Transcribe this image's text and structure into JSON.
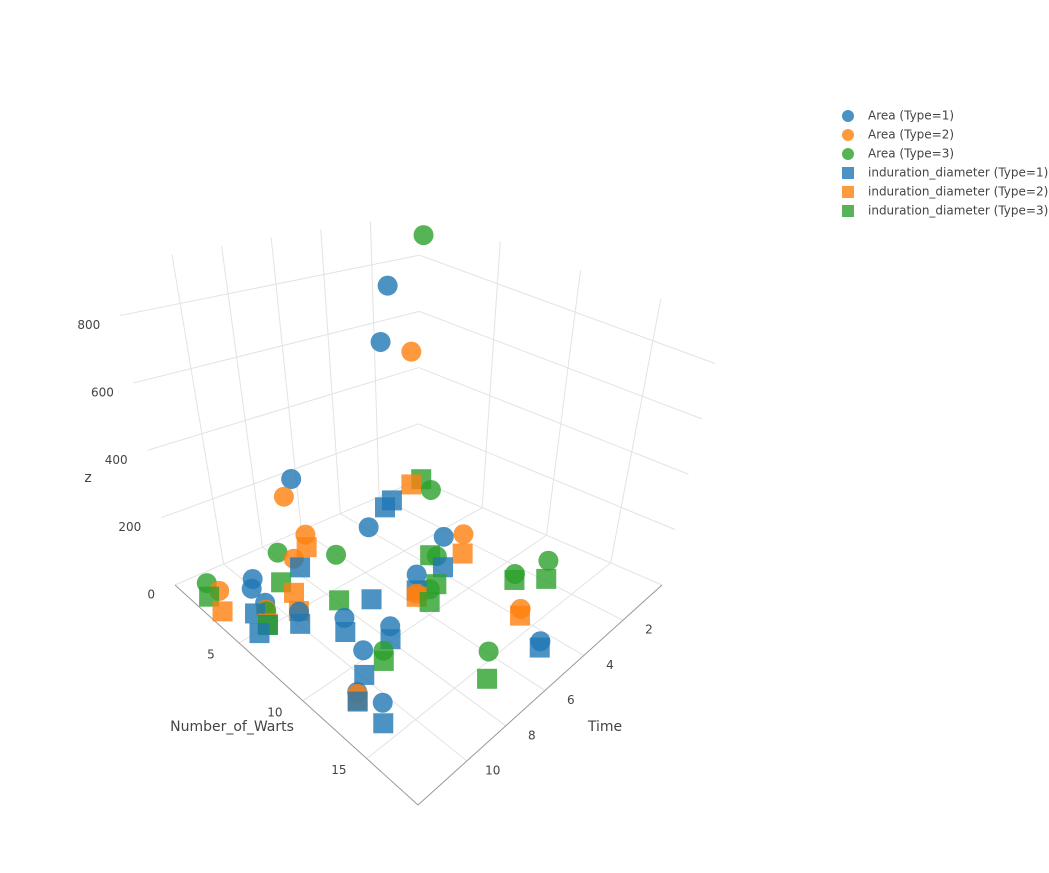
{
  "chart_data": {
    "type": "scatter3d",
    "xlabel": "Number_of_Warts",
    "ylabel": "Time",
    "zlabel": "z",
    "xlim": [
      0,
      19
    ],
    "xticks": [
      5,
      10,
      15
    ],
    "ylim": [
      0,
      12.5
    ],
    "yticks": [
      2,
      4,
      6,
      8,
      10
    ],
    "zlim": [
      0,
      950
    ],
    "zticks": [
      0,
      200,
      400,
      600,
      800
    ],
    "grid": true,
    "legend": "top-right",
    "series": [
      {
        "name": "Area (Type=1)",
        "color": "#1f77b4",
        "symbol": "circle",
        "x": [
          5,
          6,
          3,
          8,
          11,
          12,
          9,
          1,
          2,
          7,
          10,
          4,
          6,
          14,
          17,
          8
        ],
        "y": [
          11,
          10,
          8,
          9,
          10,
          11,
          6,
          2,
          3,
          7,
          8,
          11,
          12,
          11,
          5,
          4
        ],
        "z": [
          70,
          43,
          300,
          50,
          80,
          30,
          100,
          750,
          600,
          230,
          45,
          80,
          200,
          60,
          50,
          120
        ]
      },
      {
        "name": "Area (Type=2)",
        "color": "#ff7f0e",
        "symbol": "circle",
        "x": [
          3,
          6,
          4,
          9,
          12,
          2,
          5,
          1,
          14,
          8
        ],
        "y": [
          12,
          10,
          9,
          6,
          11,
          7,
          11,
          1,
          4,
          3
        ],
        "z": [
          70,
          200,
          300,
          40,
          25,
          70,
          50,
          500,
          30,
          90
        ]
      },
      {
        "name": "Area (Type=3)",
        "color": "#2ca02c",
        "symbol": "circle",
        "x": [
          2,
          5,
          7,
          10,
          3,
          12,
          16,
          1,
          6,
          9,
          13,
          11
        ],
        "y": [
          12,
          11,
          4,
          6,
          9,
          3,
          7,
          0.5,
          8,
          5,
          2,
          9
        ],
        "z": [
          60,
          45,
          250,
          80,
          100,
          50,
          90,
          900,
          150,
          120,
          70,
          40
        ]
      },
      {
        "name": "induration_diameter (Type=1)",
        "color": "#1f77b4",
        "symbol": "square",
        "x": [
          5,
          6,
          3,
          8,
          11,
          12,
          9,
          1,
          2,
          7,
          10,
          4,
          6,
          14,
          17,
          8
        ],
        "y": [
          11,
          10,
          8,
          9,
          10,
          11,
          6,
          2,
          3,
          7,
          8,
          11,
          12,
          11,
          5,
          4
        ],
        "z": [
          5,
          7,
          25,
          8,
          9,
          3,
          50,
          10,
          40,
          6,
          6,
          7,
          45,
          3,
          30,
          20
        ]
      },
      {
        "name": "induration_diameter (Type=2)",
        "color": "#ff7f0e",
        "symbol": "square",
        "x": [
          3,
          6,
          4,
          9,
          12,
          2,
          5,
          1,
          14,
          8
        ],
        "y": [
          12,
          10,
          9,
          6,
          11,
          7,
          11,
          1,
          4,
          3
        ],
        "z": [
          10,
          45,
          7,
          30,
          6,
          30,
          9,
          35,
          8,
          25
        ]
      },
      {
        "name": "induration_diameter (Type=3)",
        "color": "#2ca02c",
        "symbol": "square",
        "x": [
          2,
          5,
          7,
          10,
          3,
          12,
          16,
          1,
          6,
          9,
          13,
          11
        ],
        "y": [
          12,
          11,
          4,
          6,
          9,
          3,
          7,
          0.5,
          8,
          5,
          2,
          9
        ],
        "z": [
          20,
          5,
          35,
          40,
          9,
          30,
          8,
          38,
          10,
          30,
          8,
          10
        ]
      }
    ]
  }
}
